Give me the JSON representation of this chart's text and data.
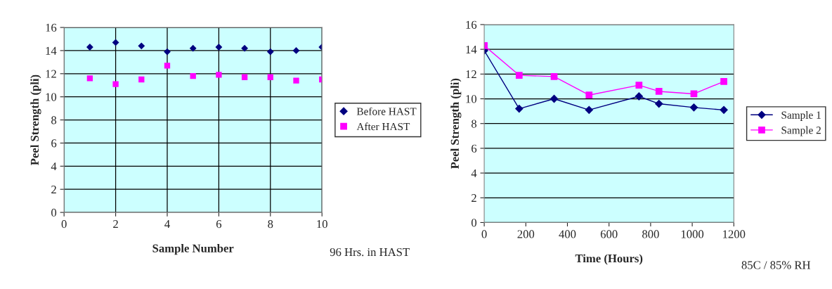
{
  "chart_data": [
    {
      "type": "scatter",
      "xlabel": "Sample Number",
      "ylabel": "Peel Strength (pli)",
      "annotations": [
        "96 Hrs. in HAST"
      ],
      "x": [
        1,
        2,
        3,
        4,
        5,
        6,
        7,
        8,
        9,
        10
      ],
      "xlim": [
        0,
        10
      ],
      "xticks": [
        0,
        2,
        4,
        6,
        8,
        10
      ],
      "ylim": [
        0,
        16
      ],
      "yticks": [
        0,
        2,
        4,
        6,
        8,
        10,
        12,
        14,
        16
      ],
      "grid": true,
      "legend": "right",
      "series": [
        {
          "name": "Before HAST",
          "color": "#000080",
          "marker": "diamond",
          "values": [
            14.3,
            14.7,
            14.4,
            13.9,
            14.2,
            14.3,
            14.2,
            13.9,
            14.0,
            14.3
          ]
        },
        {
          "name": "After HAST",
          "color": "#ff00ff",
          "marker": "square",
          "values": [
            11.6,
            11.1,
            11.5,
            12.7,
            11.8,
            11.9,
            11.7,
            11.7,
            11.4,
            11.5
          ]
        }
      ]
    },
    {
      "type": "line",
      "xlabel": "Time (Hours)",
      "ylabel": "Peel Strength (pli)",
      "annotations": [
        "85C / 85% RH"
      ],
      "x": [
        0,
        168,
        336,
        504,
        744,
        840,
        1008,
        1152
      ],
      "xlim": [
        0,
        1200
      ],
      "xticks": [
        0,
        200,
        400,
        600,
        800,
        1000,
        1200
      ],
      "ylim": [
        0,
        16
      ],
      "yticks": [
        0,
        2,
        4,
        6,
        8,
        10,
        12,
        14,
        16
      ],
      "grid": "y",
      "legend": "right",
      "series": [
        {
          "name": "Sample 1",
          "color": "#000080",
          "marker": "diamond",
          "values": [
            13.9,
            9.2,
            10.0,
            9.1,
            10.2,
            9.6,
            9.3,
            9.1
          ]
        },
        {
          "name": "Sample 2",
          "color": "#ff00ff",
          "marker": "square",
          "values": [
            14.3,
            11.9,
            11.8,
            10.3,
            11.1,
            10.6,
            10.4,
            11.4
          ]
        }
      ]
    }
  ]
}
